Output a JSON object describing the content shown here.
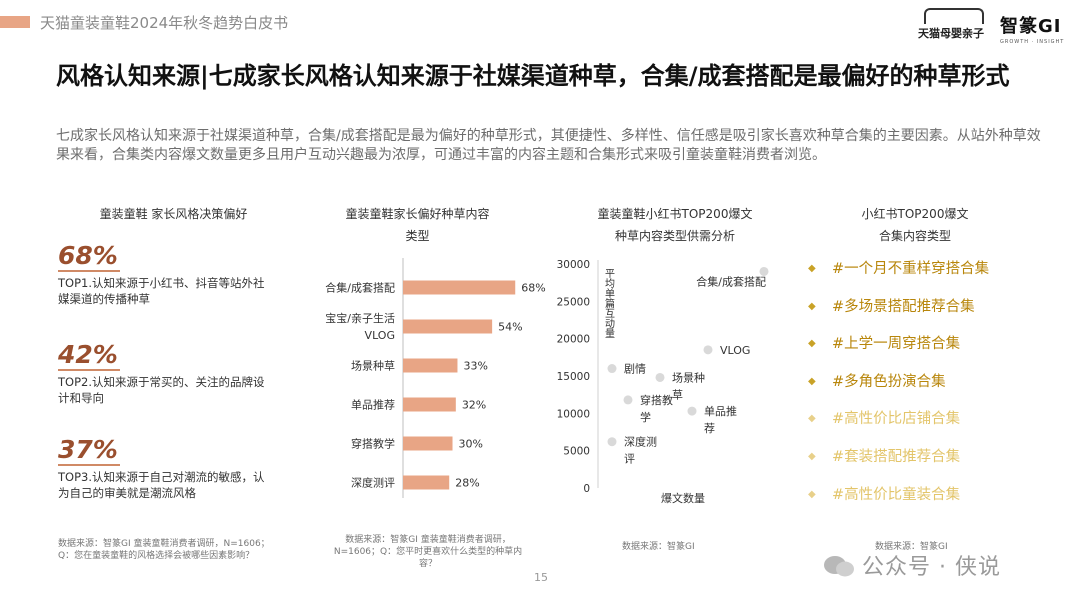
{
  "header": {
    "title": "天猫童装童鞋2024年秋冬趋势白皮书",
    "logo_tmall": "天猫母婴亲子",
    "logo_gi": "智篆GI",
    "logo_gi_sub": "GROWTH · INSIGHT"
  },
  "title": "风格认知来源|七成家长风格认知来源于社媒渠道种草，合集/成套搭配是最偏好的种草形式",
  "lead": "七成家长风格认知来源于社媒渠道种草，合集/成套搭配是最为偏好的种草形式，其便捷性、多样性、信任感是吸引家长喜欢种草合集的主要因素。从站外种草效果来看，合集类内容爆文数量更多且用户互动兴趣最为浓厚，可通过丰富的内容主题和合集形式来吸引童装童鞋消费者浏览。",
  "left_panel": {
    "title": "童装童鞋 家长风格决策偏好",
    "stats": [
      {
        "pct": "68%",
        "desc": "TOP1.认知来源于小红书、抖音等站外社媒渠道的传播种草"
      },
      {
        "pct": "42%",
        "desc": "TOP2.认知来源于常买的、关注的品牌设计和导向"
      },
      {
        "pct": "37%",
        "desc": "TOP3.认知来源于自己对潮流的敏感，认为自己的审美就是潮流风格"
      }
    ],
    "source": "数据来源：智篆GI 童装童鞋消费者调研，N=1606；\nQ：您在童装童鞋的风格选择会被哪些因素影响？"
  },
  "bar_panel": {
    "title_line1": "童装童鞋家长偏好种草内容",
    "title_line2": "类型",
    "source": "数据来源：智篆GI 童装童鞋消费者调研，\nN=1606；Q：您平时更喜欢什么类型的种草内\n容？"
  },
  "scatter_panel": {
    "title_line1": "童装童鞋小红书TOP200爆文",
    "title_line2": "种草内容类型供需分析",
    "source": "数据来源：智篆GI"
  },
  "tags_panel": {
    "title_line1": "小红书TOP200爆文",
    "title_line2": "合集内容类型",
    "tags": [
      {
        "text": "#一个月不重样穿搭合集",
        "level": "strong"
      },
      {
        "text": "#多场景搭配推荐合集",
        "level": "strong"
      },
      {
        "text": "#上学一周穿搭合集",
        "level": "strong"
      },
      {
        "text": "#多角色扮演合集",
        "level": "strong"
      },
      {
        "text": "#高性价比店铺合集",
        "level": "light"
      },
      {
        "text": "#套装搭配推荐合集",
        "level": "light"
      },
      {
        "text": "#高性价比童装合集",
        "level": "light"
      }
    ],
    "source": "数据来源：智篆GI"
  },
  "page_number": "15",
  "watermark": "公众号 · 侠说",
  "colors": {
    "bar": "#e8a585",
    "point": "#d9d9d9",
    "accent": "#9a4f2e",
    "tag_strong": "#b8860b",
    "tag_light": "#e3c56a"
  },
  "chart_data": [
    {
      "type": "bar",
      "orientation": "horizontal",
      "title": "童装童鞋家长偏好种草内容类型",
      "categories": [
        "合集/成套搭配",
        "宝宝/亲子生活VLOG",
        "场景种草",
        "单品推荐",
        "穿搭教学",
        "深度测评"
      ],
      "category_lines": [
        [
          "合集/成套搭配"
        ],
        [
          "宝宝/亲子生活",
          "VLOG"
        ],
        [
          "场景种草"
        ],
        [
          "单品推荐"
        ],
        [
          "穿搭教学"
        ],
        [
          "深度测评"
        ]
      ],
      "values": [
        68,
        54,
        33,
        32,
        30,
        28
      ],
      "value_labels": [
        "68%",
        "54%",
        "33%",
        "32%",
        "30%",
        "28%"
      ],
      "xlim": [
        0,
        100
      ]
    },
    {
      "type": "scatter",
      "title": "童装童鞋小红书TOP200爆文种草内容类型供需分析",
      "xlabel": "爆文数量",
      "ylabel": "平均单篇互动量",
      "ylim": [
        0,
        30000
      ],
      "yticks": [
        0,
        5000,
        10000,
        15000,
        20000,
        25000,
        30000
      ],
      "points": [
        {
          "label": "合集/成套搭配",
          "label_lines": [
            "合集/成套搭配"
          ],
          "x": 20,
          "y": 29000
        },
        {
          "label": "VLOG",
          "label_lines": [
            "VLOG"
          ],
          "x": 13,
          "y": 18500
        },
        {
          "label": "剧情",
          "label_lines": [
            "剧情"
          ],
          "x": 1,
          "y": 16000
        },
        {
          "label": "场景种草",
          "label_lines": [
            "场景种",
            "草"
          ],
          "x": 7,
          "y": 14800
        },
        {
          "label": "穿搭教学",
          "label_lines": [
            "穿搭教",
            "学"
          ],
          "x": 3,
          "y": 11800
        },
        {
          "label": "单品推荐",
          "label_lines": [
            "单品推",
            "荐"
          ],
          "x": 11,
          "y": 10300
        },
        {
          "label": "深度测评",
          "label_lines": [
            "深度测",
            "评"
          ],
          "x": 1,
          "y": 6200
        }
      ]
    }
  ]
}
